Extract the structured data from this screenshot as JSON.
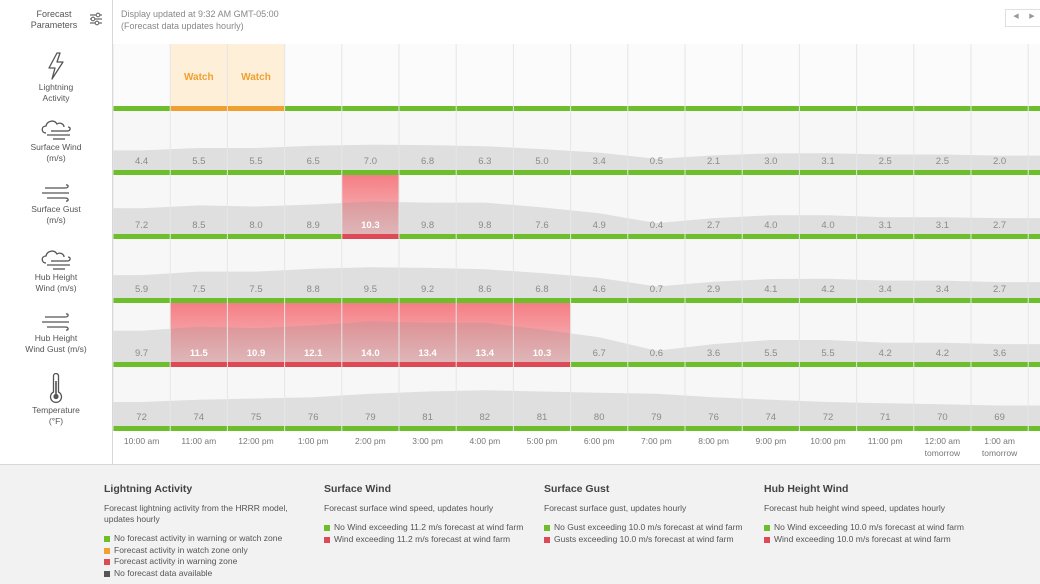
{
  "sidebar": {
    "title_line1": "Forecast",
    "title_line2": "Parameters",
    "rows": [
      {
        "icon": "lightning-icon",
        "line1": "Lightning",
        "line2": "Activity"
      },
      {
        "icon": "wind-icon",
        "line1": "Surface Wind",
        "line2": "(m/s)"
      },
      {
        "icon": "gust-icon",
        "line1": "Surface Gust",
        "line2": "(m/s)"
      },
      {
        "icon": "wind-icon",
        "line1": "Hub Height",
        "line2": "Wind (m/s)"
      },
      {
        "icon": "gust-icon",
        "line1": "Hub Height",
        "line2": "Wind Gust (m/s)"
      },
      {
        "icon": "thermometer-icon",
        "line1": "Temperature",
        "line2": "(°F)"
      }
    ]
  },
  "header": {
    "update_line1": "Display updated at 9:32 AM GMT-05:00",
    "update_line2": "(Forecast data updates hourly)"
  },
  "nav": {
    "prev": "◀",
    "next": "▶"
  },
  "chart_data": {
    "type": "table",
    "times": [
      "10:00 am",
      "11:00 am",
      "12:00 pm",
      "1:00 pm",
      "2:00 pm",
      "3:00 pm",
      "4:00 pm",
      "5:00 pm",
      "6:00 pm",
      "7:00 pm",
      "8:00 pm",
      "9:00 pm",
      "10:00 pm",
      "11:00 pm",
      "12:00 am",
      "1:00 am"
    ],
    "times_sub": [
      "",
      "",
      "",
      "",
      "",
      "",
      "",
      "",
      "",
      "",
      "",
      "",
      "",
      "",
      "tomorrow",
      "tomorrow"
    ],
    "lightning": [
      "",
      "Watch",
      "Watch",
      "",
      "",
      "",
      "",
      "",
      "",
      "",
      "",
      "",
      "",
      "",
      "",
      ""
    ],
    "series": [
      {
        "name": "Surface Wind",
        "values": [
          4.4,
          5.5,
          5.5,
          6.5,
          7.0,
          6.8,
          6.3,
          5.0,
          3.4,
          0.5,
          2.1,
          3.0,
          3.1,
          2.5,
          2.5,
          2.0
        ],
        "threshold": 11.2
      },
      {
        "name": "Surface Gust",
        "values": [
          7.2,
          8.5,
          8.0,
          8.9,
          10.3,
          9.8,
          9.8,
          7.6,
          4.9,
          0.4,
          2.7,
          4.0,
          4.0,
          3.1,
          3.1,
          2.7
        ],
        "threshold": 10.0
      },
      {
        "name": "Hub Height Wind",
        "values": [
          5.9,
          7.5,
          7.5,
          8.8,
          9.5,
          9.2,
          8.6,
          6.8,
          4.6,
          0.7,
          2.9,
          4.1,
          4.2,
          3.4,
          3.4,
          2.7
        ],
        "threshold": 10.0
      },
      {
        "name": "Hub Height Wind Gust",
        "values": [
          9.7,
          11.5,
          10.9,
          12.1,
          14.0,
          13.4,
          13.4,
          10.3,
          6.7,
          0.6,
          3.6,
          5.5,
          5.5,
          4.2,
          4.2,
          3.6
        ],
        "threshold": 10.0
      },
      {
        "name": "Temperature",
        "values": [
          72,
          74,
          75,
          76,
          79,
          81,
          82,
          81,
          80,
          79,
          76,
          74,
          72,
          71,
          70,
          69
        ]
      }
    ]
  },
  "colors": {
    "ok": "#6cbf2a",
    "watch": "#f0a030",
    "warning": "#dd4a55",
    "nodata": "#555555",
    "watch_fill": "#fdefd8",
    "warn_fill_top": "#f57e84",
    "warn_fill_bottom": "#f5c0c3"
  },
  "legend": [
    {
      "title": "Lightning Activity",
      "desc": "Forecast lightning activity from the HRRR model, updates hourly",
      "items": [
        {
          "color": "#6cbf2a",
          "text": "No forecast activity in warning or watch zone"
        },
        {
          "color": "#f0a030",
          "text": "Forecast activity in watch zone only"
        },
        {
          "color": "#dd4a55",
          "text": "Forecast activity in warning zone"
        },
        {
          "color": "#555555",
          "text": "No forecast data available"
        }
      ]
    },
    {
      "title": "Surface Wind",
      "desc": "Forecast surface wind speed, updates hourly",
      "items": [
        {
          "color": "#6cbf2a",
          "text": "No Wind exceeding 11.2 m/s forecast at wind farm"
        },
        {
          "color": "#dd4a55",
          "text": "Wind exceeding 11.2 m/s forecast at wind farm"
        }
      ]
    },
    {
      "title": "Surface Gust",
      "desc": "Forecast surface gust, updates hourly",
      "items": [
        {
          "color": "#6cbf2a",
          "text": "No Gust exceeding 10.0 m/s forecast at wind farm"
        },
        {
          "color": "#dd4a55",
          "text": "Gusts exceeding 10.0 m/s forecast at wind farm"
        }
      ]
    },
    {
      "title": "Hub Height Wind",
      "desc": "Forecast hub height wind speed, updates hourly",
      "items": [
        {
          "color": "#6cbf2a",
          "text": "No Wind exceeding 10.0 m/s forecast at wind farm"
        },
        {
          "color": "#dd4a55",
          "text": "Wind exceeding 10.0 m/s forecast at wind farm"
        }
      ]
    }
  ]
}
